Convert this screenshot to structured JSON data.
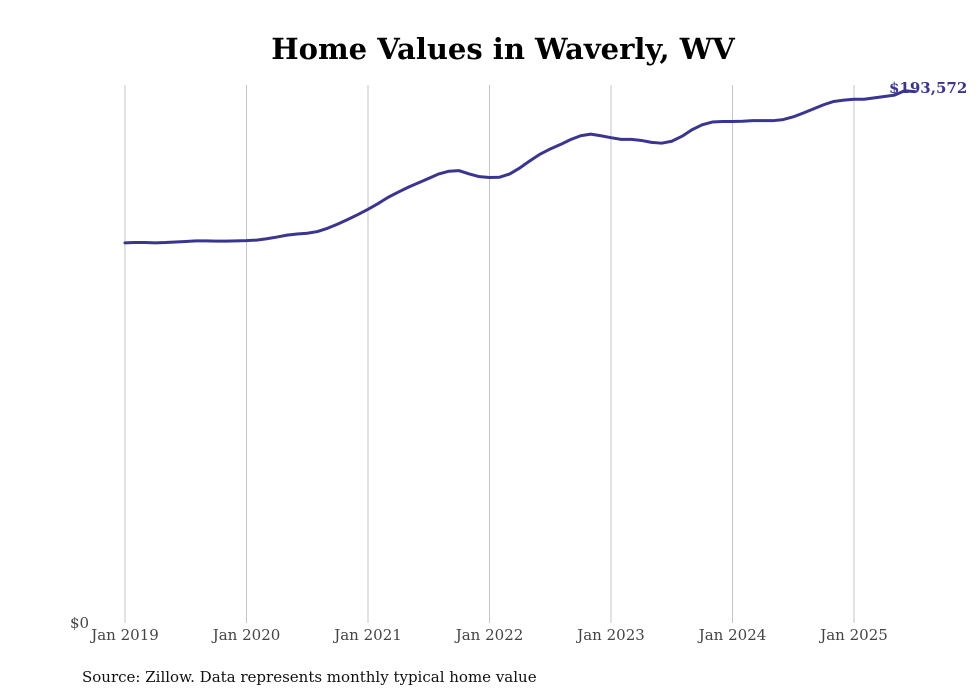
{
  "chart_data": {
    "type": "line",
    "title": "Home Values in Waverly, WV",
    "source": "Source: Zillow. Data represents monthly typical home value",
    "y_label_zero": "$0",
    "end_label": "$193,572",
    "line_color": "#3a3591",
    "x_ticks": [
      {
        "label": "Jan 2019",
        "year": 2019
      },
      {
        "label": "Jan 2020",
        "year": 2020
      },
      {
        "label": "Jan 2021",
        "year": 2021
      },
      {
        "label": "Jan 2022",
        "year": 2022
      },
      {
        "label": "Jan 2023",
        "year": 2023
      },
      {
        "label": "Jan 2024",
        "year": 2024
      },
      {
        "label": "Jan 2025",
        "year": 2025
      }
    ],
    "ylim": [
      0,
      196000
    ],
    "grid": "vertical",
    "series": [
      {
        "start": "2019-01",
        "values": [
          138500,
          138600,
          138600,
          138500,
          138600,
          138800,
          139000,
          139200,
          139200,
          139100,
          139100,
          139200,
          139300,
          139500,
          140000,
          140600,
          141300,
          141700,
          142000,
          142600,
          143800,
          145300,
          147000,
          148800,
          150700,
          152800,
          155100,
          157000,
          158800,
          160400,
          162000,
          163600,
          164600,
          164800,
          163600,
          162600,
          162300,
          162400,
          163600,
          165800,
          168400,
          170800,
          172700,
          174300,
          176100,
          177500,
          178100,
          177500,
          176800,
          176200,
          176200,
          175800,
          175100,
          174800,
          175500,
          177300,
          179700,
          181500,
          182500,
          182700,
          182700,
          182800,
          183000,
          183000,
          183000,
          183400,
          184400,
          185800,
          187300,
          188800,
          190000,
          190500,
          190800,
          190800,
          191300,
          191800,
          192300,
          193900,
          193572
        ]
      }
    ]
  }
}
